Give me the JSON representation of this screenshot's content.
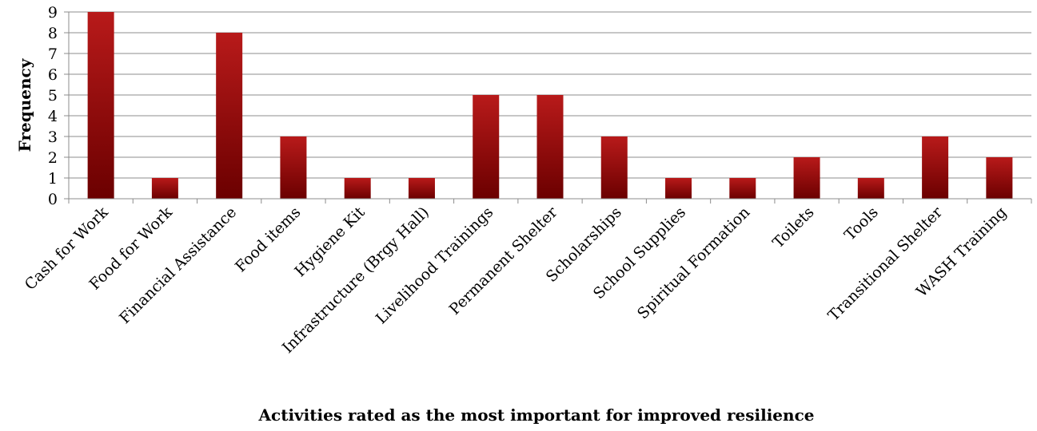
{
  "chart_data": {
    "type": "bar",
    "title": "",
    "xlabel": "Activities rated  as the most important for improved resilience",
    "ylabel": "Frequency",
    "ylim": [
      0,
      9
    ],
    "yticks": [
      0,
      1,
      2,
      3,
      4,
      5,
      6,
      7,
      8,
      9
    ],
    "grid": true,
    "legend": "none",
    "categories": [
      "Cash for Work",
      "Food for Work",
      "Financial Assistance",
      "Food items",
      "Hygiene Kit",
      "Infrastructure (Brgy Hall)",
      "Livelihood Trainings",
      "Permanent Shelter",
      "Scholarships",
      "School Supplies",
      "Spiritual Formation",
      "Toilets",
      "Tools",
      "Transitional Shelter",
      "WASH Training"
    ],
    "values": [
      9,
      1,
      8,
      3,
      1,
      1,
      5,
      5,
      3,
      1,
      1,
      2,
      1,
      3,
      2
    ],
    "colors": {
      "bar_light": "#b81a1a",
      "bar_dark": "#6b0000",
      "grid": "#8c8c8c",
      "axis": "#8c8c8c"
    }
  }
}
